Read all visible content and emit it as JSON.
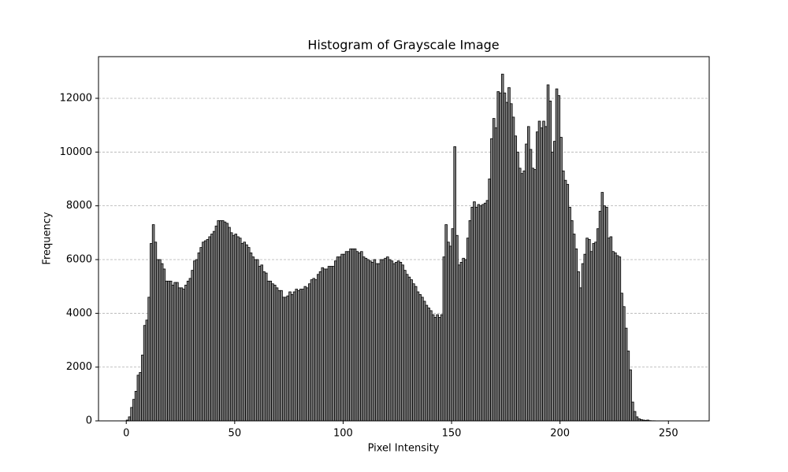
{
  "chart_data": {
    "type": "histogram",
    "title": "Histogram of Grayscale Image",
    "xlabel": "Pixel Intensity",
    "ylabel": "Frequency",
    "bins": [
      0,
      1,
      2,
      3,
      4,
      5,
      6,
      7,
      8,
      9,
      10,
      11,
      12,
      13,
      14,
      15,
      16,
      17,
      18,
      19,
      20,
      21,
      22,
      23,
      24,
      25,
      26,
      27,
      28,
      29,
      30,
      31,
      32,
      33,
      34,
      35,
      36,
      37,
      38,
      39,
      40,
      41,
      42,
      43,
      44,
      45,
      46,
      47,
      48,
      49,
      50,
      51,
      52,
      53,
      54,
      55,
      56,
      57,
      58,
      59,
      60,
      61,
      62,
      63,
      64,
      65,
      66,
      67,
      68,
      69,
      70,
      71,
      72,
      73,
      74,
      75,
      76,
      77,
      78,
      79,
      80,
      81,
      82,
      83,
      84,
      85,
      86,
      87,
      88,
      89,
      90,
      91,
      92,
      93,
      94,
      95,
      96,
      97,
      98,
      99,
      100,
      101,
      102,
      103,
      104,
      105,
      106,
      107,
      108,
      109,
      110,
      111,
      112,
      113,
      114,
      115,
      116,
      117,
      118,
      119,
      120,
      121,
      122,
      123,
      124,
      125,
      126,
      127,
      128,
      129,
      130,
      131,
      132,
      133,
      134,
      135,
      136,
      137,
      138,
      139,
      140,
      141,
      142,
      143,
      144,
      145,
      146,
      147,
      148,
      149,
      150,
      151,
      152,
      153,
      154,
      155,
      156,
      157,
      158,
      159,
      160,
      161,
      162,
      163,
      164,
      165,
      166,
      167,
      168,
      169,
      170,
      171,
      172,
      173,
      174,
      175,
      176,
      177,
      178,
      179,
      180,
      181,
      182,
      183,
      184,
      185,
      186,
      187,
      188,
      189,
      190,
      191,
      192,
      193,
      194,
      195,
      196,
      197,
      198,
      199,
      200,
      201,
      202,
      203,
      204,
      205,
      206,
      207,
      208,
      209,
      210,
      211,
      212,
      213,
      214,
      215,
      216,
      217,
      218,
      219,
      220,
      221,
      222,
      223,
      224,
      225,
      226,
      227,
      228,
      229,
      230,
      231,
      232,
      233,
      234,
      235,
      236,
      237,
      238,
      239,
      240,
      241,
      242,
      243,
      244,
      245,
      246,
      247,
      248,
      249,
      250,
      251,
      252,
      253,
      254,
      255,
      256
    ],
    "counts": [
      30,
      150,
      500,
      800,
      1100,
      1700,
      1800,
      2450,
      3550,
      3750,
      4600,
      6600,
      7300,
      6650,
      6000,
      6000,
      5850,
      5650,
      5200,
      5200,
      5200,
      5050,
      5150,
      5150,
      4950,
      4950,
      4900,
      5050,
      5200,
      5300,
      5600,
      5950,
      6000,
      6250,
      6450,
      6650,
      6700,
      6750,
      6850,
      6950,
      7050,
      7250,
      7450,
      7450,
      7450,
      7400,
      7350,
      7200,
      7000,
      6900,
      6950,
      6850,
      6800,
      6600,
      6650,
      6550,
      6450,
      6250,
      6100,
      6000,
      6000,
      5750,
      5800,
      5550,
      5500,
      5200,
      5200,
      5100,
      5050,
      4950,
      4850,
      4850,
      4600,
      4600,
      4650,
      4800,
      4700,
      4800,
      4900,
      4850,
      4900,
      4900,
      5000,
      4950,
      5100,
      5250,
      5300,
      5250,
      5450,
      5550,
      5700,
      5650,
      5650,
      5750,
      5750,
      5750,
      5950,
      6100,
      6100,
      6200,
      6200,
      6300,
      6300,
      6400,
      6400,
      6400,
      6300,
      6250,
      6300,
      6100,
      6050,
      6000,
      5950,
      5900,
      6000,
      5850,
      5850,
      6000,
      6000,
      6050,
      6100,
      6000,
      5950,
      5850,
      5900,
      5950,
      5900,
      5800,
      5600,
      5450,
      5350,
      5250,
      5100,
      5000,
      4800,
      4700,
      4600,
      4450,
      4300,
      4200,
      4100,
      3950,
      3850,
      3950,
      3850,
      3950,
      6100,
      7300,
      6650,
      6500,
      7150,
      10200,
      6900,
      5800,
      5900,
      6050,
      6000,
      6800,
      7450,
      7950,
      8150,
      7950,
      8050,
      8000,
      8050,
      8100,
      8200,
      9000,
      10500,
      11250,
      10900,
      12250,
      12200,
      12900,
      12200,
      11850,
      12400,
      11800,
      11300,
      10600,
      10000,
      9400,
      9200,
      9300,
      10300,
      10950,
      10100,
      9400,
      9350,
      10750,
      11150,
      10900,
      11150,
      10950,
      12500,
      11900,
      10000,
      10400,
      12350,
      12100,
      10550,
      9300,
      8950,
      8800,
      7950,
      7450,
      6950,
      6400,
      5550,
      4950,
      5850,
      6200,
      6800,
      6750,
      6300,
      6600,
      6650,
      7150,
      7800,
      8500,
      8000,
      7950,
      6800,
      6850,
      6300,
      6250,
      6150,
      6100,
      4750,
      4250,
      3450,
      2600,
      1900,
      700,
      350,
      150,
      80,
      50,
      30,
      20,
      30,
      10,
      5,
      5,
      2,
      0,
      0,
      0,
      0,
      0,
      0,
      0,
      0,
      0,
      0,
      0
    ],
    "color": "#808080",
    "edgecolor": "#000000",
    "xlim": [
      -12.8,
      268.8
    ],
    "xticks": [
      0,
      50,
      100,
      150,
      200,
      250
    ],
    "ylim": [
      0,
      13550
    ],
    "yticks": [
      0,
      2000,
      4000,
      6000,
      8000,
      10000,
      12000
    ],
    "grid": "y"
  }
}
